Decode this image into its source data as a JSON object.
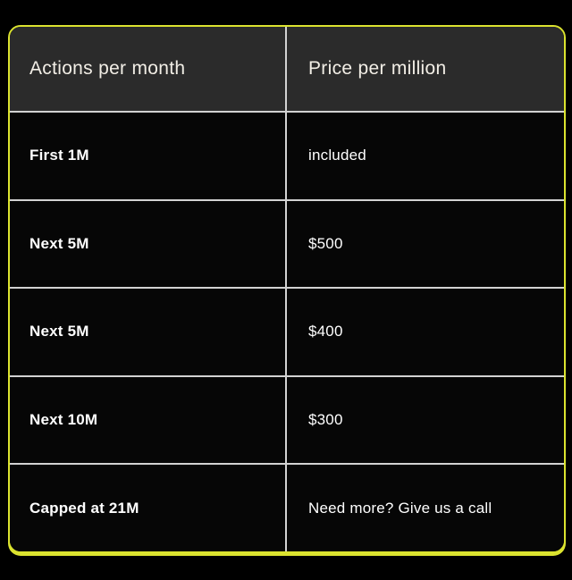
{
  "colors": {
    "page_bg": "#000000",
    "accent": "#dbe32f",
    "header_bg": "#2b2b2b",
    "row_bg": "#060606",
    "divider": "#d2d2d2",
    "header_text": "#f2eee6",
    "row_text": "#ffffff"
  },
  "table": {
    "columns": [
      {
        "label": "Actions per month"
      },
      {
        "label": "Price per million"
      }
    ],
    "rows": [
      {
        "tier": "First 1M",
        "price": "included"
      },
      {
        "tier": "Next 5M",
        "price": "$500"
      },
      {
        "tier": "Next 5M",
        "price": "$400"
      },
      {
        "tier": "Next 10M",
        "price": "$300"
      },
      {
        "tier": "Capped at 21M",
        "price": "Need more? Give us a call"
      }
    ]
  }
}
